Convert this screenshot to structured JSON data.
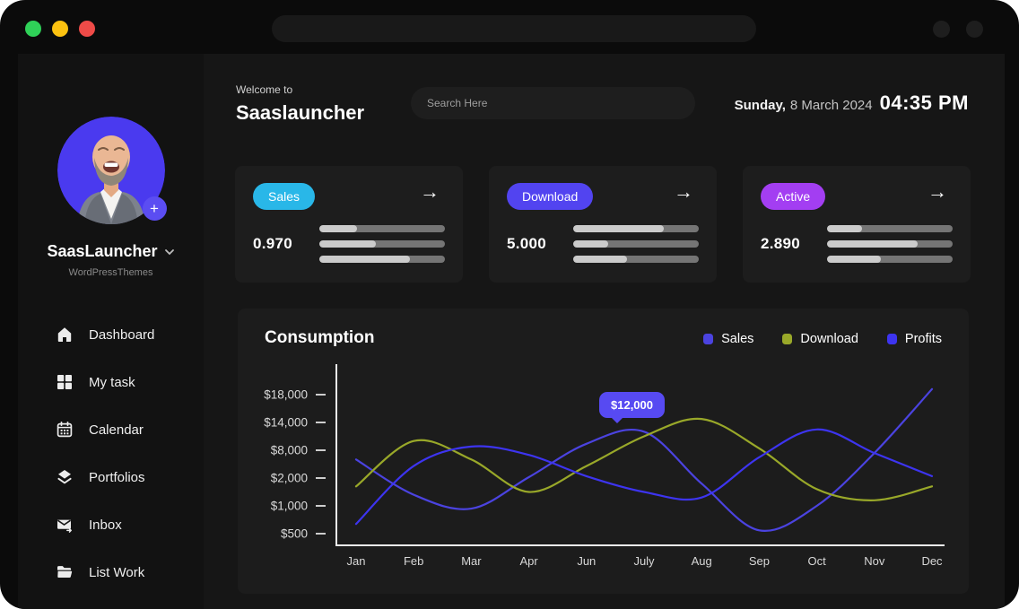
{
  "window": {
    "traffic_lights": [
      "green",
      "yellow",
      "red"
    ],
    "url_bar_value": ""
  },
  "sidebar": {
    "profile": {
      "name": "SaasLauncher",
      "subtitle": "WordPressThemes",
      "avatar_accent": "#4a3aef",
      "add_label": "+"
    },
    "nav": [
      {
        "label": "Dashboard",
        "icon": "home-icon"
      },
      {
        "label": "My task",
        "icon": "grid-icon"
      },
      {
        "label": "Calendar",
        "icon": "calendar-icon"
      },
      {
        "label": "Portfolios",
        "icon": "layers-icon"
      },
      {
        "label": "Inbox",
        "icon": "inbox-icon"
      },
      {
        "label": "List Work",
        "icon": "folder-icon"
      }
    ]
  },
  "header": {
    "welcome": "Welcome to",
    "app_name": "Saaslauncher",
    "search_placeholder": "Search Here",
    "date_day": "Sunday,",
    "date_rest": "8 March 2024",
    "time": "04:35 PM"
  },
  "cards": [
    {
      "badge": "Sales",
      "badge_color": "#29b7e8",
      "value": "0.970",
      "arrow": "→",
      "bars": [
        30,
        45,
        72
      ]
    },
    {
      "badge": "Download",
      "badge_color": "#5244f0",
      "value": "5.000",
      "arrow": "→",
      "bars": [
        72,
        28,
        43
      ]
    },
    {
      "badge": "Active",
      "badge_color": "#a33ef2",
      "value": "2.890",
      "arrow": "→",
      "bars": [
        28,
        72,
        43
      ]
    }
  ],
  "chart_data": {
    "type": "line",
    "title": "Consumption",
    "grid": false,
    "legend_position": "top-right",
    "x": [
      "Jan",
      "Feb",
      "Mar",
      "Apr",
      "Jun",
      "July",
      "Aug",
      "Sep",
      "Oct",
      "Nov",
      "Dec"
    ],
    "y_ticks": [
      "$18,000",
      "$14,000",
      "$8,000",
      "$2,000",
      "$1,000",
      "$500"
    ],
    "y_tick_values": [
      18000,
      14000,
      8000,
      2000,
      1000,
      500
    ],
    "series": [
      {
        "name": "Sales",
        "color": "#4b43e0",
        "values": [
          6000,
          1400,
          950,
          2200,
          9400,
          12000,
          1800,
          560,
          1000,
          7400,
          18800
        ]
      },
      {
        "name": "Download",
        "color": "#99a829",
        "values": [
          1700,
          10000,
          6000,
          1500,
          4600,
          11000,
          14500,
          8400,
          1600,
          1200,
          1700
        ]
      },
      {
        "name": "Profits",
        "color": "#3d34f0",
        "values": [
          675,
          4600,
          8800,
          7000,
          2400,
          1500,
          1300,
          6500,
          12500,
          7400,
          2400
        ]
      }
    ],
    "tooltip": {
      "label": "$12,000",
      "series": "Sales",
      "x": "July"
    }
  }
}
